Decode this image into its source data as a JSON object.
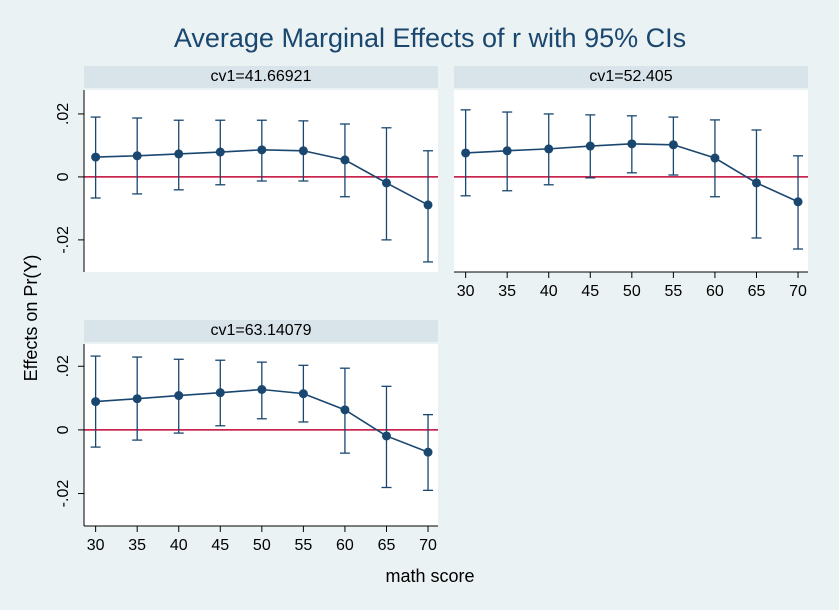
{
  "title": "Average Marginal Effects of r with 95% CIs",
  "x_label": "math score",
  "y_label": "Effects on Pr(Y)",
  "chart_data": [
    {
      "type": "line",
      "title": "cv1=41.66921",
      "x": [
        30,
        35,
        40,
        45,
        50,
        55,
        60,
        65,
        70
      ],
      "series": [
        {
          "color": "#1a476f",
          "values": [
            0.0063,
            0.0067,
            0.0073,
            0.0079,
            0.0086,
            0.0083,
            0.0054,
            -0.0019,
            -0.0089
          ],
          "ci_lower": [
            -0.0067,
            -0.0054,
            -0.0041,
            -0.0025,
            -0.0013,
            -0.0013,
            -0.0063,
            -0.02,
            -0.027
          ],
          "ci_upper": [
            0.019,
            0.0187,
            0.018,
            0.018,
            0.018,
            0.0178,
            0.0168,
            0.0156,
            0.0083
          ]
        }
      ],
      "xlim": [
        28.6,
        71.2
      ],
      "ylim": [
        -0.0302,
        0.0276
      ],
      "yticks": [
        {
          "value": -0.02,
          "label": "-.02"
        },
        0,
        {
          "value": 0.02,
          "label": ".02"
        }
      ],
      "reference_line": 0,
      "reference_color": "#c10534"
    },
    {
      "type": "line",
      "title": "cv1=52.405",
      "x": [
        30,
        35,
        40,
        45,
        50,
        55,
        60,
        65,
        70
      ],
      "series": [
        {
          "color": "#1a476f",
          "values": [
            0.0076,
            0.0083,
            0.0089,
            0.0098,
            0.0105,
            0.0102,
            0.006,
            -0.0019,
            -0.0079
          ],
          "ci_lower": [
            -0.006,
            -0.0044,
            -0.0025,
            -0.0003,
            0.0013,
            0.0006,
            -0.0063,
            -0.0194,
            -0.0229
          ],
          "ci_upper": [
            0.0213,
            0.0206,
            0.02,
            0.0197,
            0.0194,
            0.019,
            0.0181,
            0.0149,
            0.0067
          ]
        }
      ],
      "xlim": [
        28.6,
        71.2
      ],
      "ylim": [
        -0.0302,
        0.0276
      ],
      "xticks": [
        30,
        35,
        40,
        45,
        50,
        55,
        60,
        65,
        70
      ],
      "reference_line": 0,
      "reference_color": "#c10534"
    },
    {
      "type": "line",
      "title": "cv1=63.14079",
      "x": [
        30,
        35,
        40,
        45,
        50,
        55,
        60,
        65,
        70
      ],
      "series": [
        {
          "color": "#1a476f",
          "values": [
            0.0089,
            0.0098,
            0.0108,
            0.0117,
            0.0127,
            0.0114,
            0.0063,
            -0.0019,
            -0.007
          ],
          "ci_lower": [
            -0.0054,
            -0.0032,
            -0.001,
            0.0013,
            0.0035,
            0.0025,
            -0.0073,
            -0.0181,
            -0.019
          ],
          "ci_upper": [
            0.0232,
            0.0229,
            0.0222,
            0.0219,
            0.0213,
            0.0203,
            0.0194,
            0.0137,
            0.0048
          ]
        }
      ],
      "xlim": [
        28.6,
        71.2
      ],
      "ylim": [
        -0.0302,
        0.027
      ],
      "xticks": [
        30,
        35,
        40,
        45,
        50,
        55,
        60,
        65,
        70
      ],
      "yticks": [
        {
          "value": -0.02,
          "label": "-.02"
        },
        0,
        {
          "value": 0.02,
          "label": ".02"
        }
      ],
      "reference_line": 0,
      "reference_color": "#c10534"
    }
  ]
}
